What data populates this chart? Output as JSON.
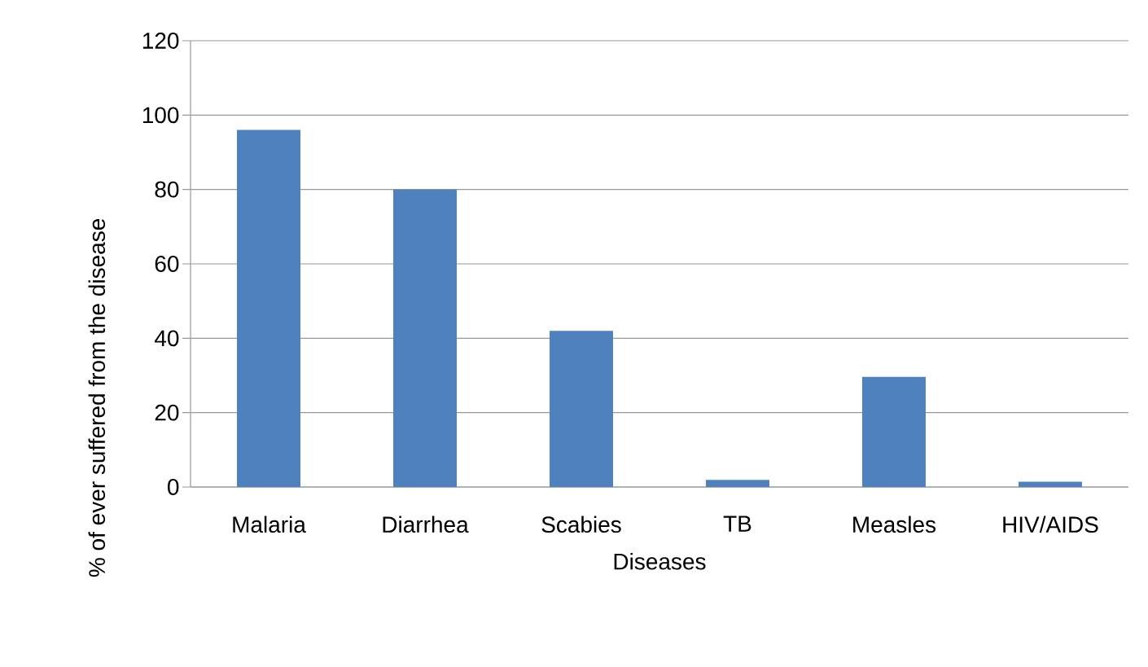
{
  "chart_data": {
    "type": "bar",
    "xlabel": "Diseases",
    "ylabel": "% of ever suffered from the disease",
    "categories": [
      "Malaria",
      "Diarrhea",
      "Scabies",
      "TB",
      "Measles",
      "HIV/AIDS"
    ],
    "values": [
      96,
      80,
      42,
      1.9,
      29.6,
      1.4
    ],
    "color": "#4f81bd",
    "ylim": [
      0,
      120
    ],
    "yticks": [
      0,
      20,
      40,
      60,
      80,
      100,
      120
    ],
    "grid": "y"
  }
}
